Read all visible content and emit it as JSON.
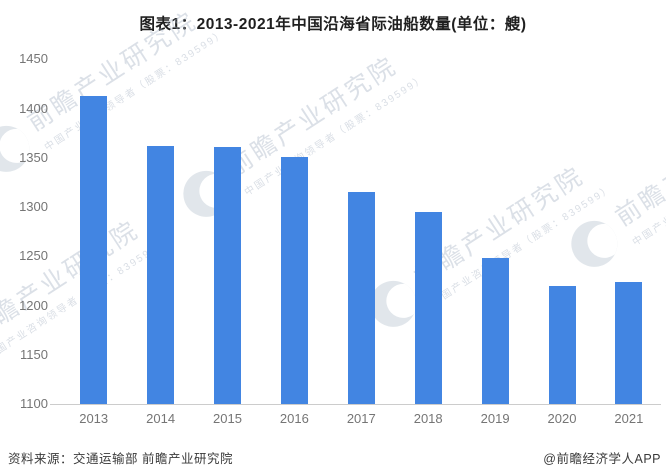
{
  "title": "图表1：2013-2021年中国沿海省际油船数量(单位：艘)",
  "footer": {
    "source": "资料来源：交通运输部 前瞻产业研究院",
    "credit": "@前瞻经济学人APP"
  },
  "watermark": {
    "brand": "前瞻产业研究院",
    "tagline": "中国产业咨询领导者（股票：839599）"
  },
  "colors": {
    "bar": "#4285E2",
    "axis_line": "#CCCCCC",
    "tick_label": "#757575",
    "title_text": "#1F1F1F"
  },
  "chart_data": {
    "type": "bar",
    "title": "图表1：2013-2021年中国沿海省际油船数量(单位：艘)",
    "categories": [
      "2013",
      "2014",
      "2015",
      "2016",
      "2017",
      "2018",
      "2019",
      "2020",
      "2021"
    ],
    "values": [
      1413,
      1362,
      1361,
      1351,
      1315,
      1295,
      1248,
      1220,
      1224
    ],
    "series_name": "中国沿海省际油船数量(艘)",
    "xlabel": "",
    "ylabel": "",
    "ylim": [
      1100,
      1450
    ],
    "yticks": [
      1100,
      1150,
      1200,
      1250,
      1300,
      1350,
      1400,
      1450
    ],
    "grid": false,
    "legend_position": "none"
  }
}
